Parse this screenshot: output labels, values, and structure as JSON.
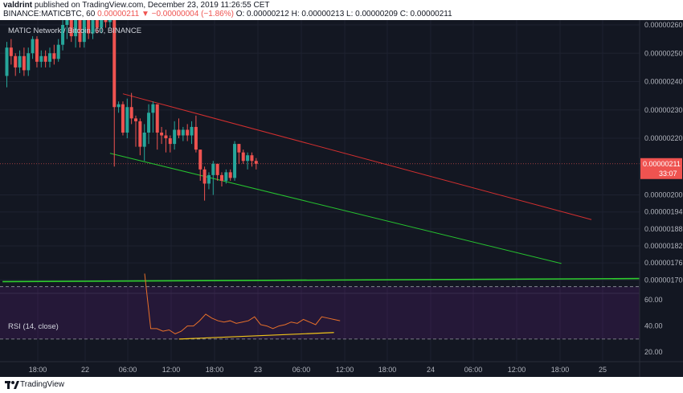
{
  "header": {
    "author": "valdrint",
    "published": "published on TradingView.com, December 23, 2019 11:26:55 CET",
    "symbol_line": "BINANCE:MATICBTC, 60",
    "last": "0.00000211",
    "change": "▼ −0.00000004 (−1.86%)",
    "ohlc": "O: 0.00000212  H: 0.00000213  L: 0.00000209  C: 0.00000211"
  },
  "chart_data": {
    "type": "candlestick",
    "title": "MATIC Network / Bitcoin, 60, BINANCE",
    "price_axis": {
      "ticks": [
        "0.00000260",
        "0.00000250",
        "0.00000240",
        "0.00000230",
        "0.00000220",
        "0.00000200",
        "0.00000194",
        "0.00000188",
        "0.00000182",
        "0.00000176",
        "0.00000170"
      ],
      "last_price_label": "0.00000211",
      "countdown": "33:07"
    },
    "time_axis": {
      "ticks": [
        "18:00",
        "22",
        "06:00",
        "12:00",
        "18:00",
        "23",
        "06:00",
        "12:00",
        "18:00",
        "24",
        "06:00",
        "12:00",
        "18:00",
        "25"
      ]
    },
    "candles": [
      {
        "o": 2.42,
        "c": 2.52,
        "h": 2.54,
        "l": 2.38
      },
      {
        "o": 2.52,
        "c": 2.49,
        "h": 2.55,
        "l": 2.46
      },
      {
        "o": 2.49,
        "c": 2.45,
        "h": 2.5,
        "l": 2.42
      },
      {
        "o": 2.45,
        "c": 2.49,
        "h": 2.51,
        "l": 2.43
      },
      {
        "o": 2.49,
        "c": 2.44,
        "h": 2.52,
        "l": 2.42
      },
      {
        "o": 2.44,
        "c": 2.5,
        "h": 2.52,
        "l": 2.42
      },
      {
        "o": 2.5,
        "c": 2.55,
        "h": 2.56,
        "l": 2.48
      },
      {
        "o": 2.55,
        "c": 2.47,
        "h": 2.56,
        "l": 2.45
      },
      {
        "o": 2.47,
        "c": 2.49,
        "h": 2.51,
        "l": 2.45
      },
      {
        "o": 2.49,
        "c": 2.47,
        "h": 2.51,
        "l": 2.45
      },
      {
        "o": 2.47,
        "c": 2.5,
        "h": 2.52,
        "l": 2.45
      },
      {
        "o": 2.5,
        "c": 2.48,
        "h": 2.53,
        "l": 2.46
      },
      {
        "o": 2.48,
        "c": 2.53,
        "h": 2.55,
        "l": 2.47
      },
      {
        "o": 2.53,
        "c": 2.6,
        "h": 2.62,
        "l": 2.51
      },
      {
        "o": 2.6,
        "c": 2.62,
        "h": 2.63,
        "l": 2.55
      },
      {
        "o": 2.62,
        "c": 2.56,
        "h": 2.63,
        "l": 2.54
      },
      {
        "o": 2.56,
        "c": 2.63,
        "h": 2.64,
        "l": 2.52
      },
      {
        "o": 2.63,
        "c": 2.54,
        "h": 2.64,
        "l": 2.52
      },
      {
        "o": 2.54,
        "c": 2.63,
        "h": 2.64,
        "l": 2.52
      },
      {
        "o": 2.63,
        "c": 2.57,
        "h": 2.64,
        "l": 2.55
      },
      {
        "o": 2.57,
        "c": 2.63,
        "h": 2.64,
        "l": 2.55
      },
      {
        "o": 2.63,
        "c": 2.59,
        "h": 2.64,
        "l": 2.57
      },
      {
        "o": 2.59,
        "c": 2.63,
        "h": 2.64,
        "l": 2.57
      },
      {
        "o": 2.63,
        "c": 2.61,
        "h": 2.64,
        "l": 2.59
      },
      {
        "o": 2.61,
        "c": 2.63,
        "h": 2.64,
        "l": 2.59
      },
      {
        "o": 2.63,
        "c": 2.31,
        "h": 2.64,
        "l": 2.1
      },
      {
        "o": 2.31,
        "c": 2.32,
        "h": 2.33,
        "l": 2.29
      },
      {
        "o": 2.32,
        "c": 2.22,
        "h": 2.33,
        "l": 2.21
      },
      {
        "o": 2.22,
        "c": 2.31,
        "h": 2.34,
        "l": 2.2
      },
      {
        "o": 2.31,
        "c": 2.27,
        "h": 2.36,
        "l": 2.25
      },
      {
        "o": 2.27,
        "c": 2.26,
        "h": 2.28,
        "l": 2.17
      },
      {
        "o": 2.26,
        "c": 2.17,
        "h": 2.27,
        "l": 2.14
      },
      {
        "o": 2.17,
        "c": 2.22,
        "h": 2.25,
        "l": 2.12
      },
      {
        "o": 2.22,
        "c": 2.29,
        "h": 2.32,
        "l": 2.18
      },
      {
        "o": 2.29,
        "c": 2.32,
        "h": 2.33,
        "l": 2.22
      },
      {
        "o": 2.32,
        "c": 2.22,
        "h": 2.32,
        "l": 2.16
      },
      {
        "o": 2.22,
        "c": 2.21,
        "h": 2.24,
        "l": 2.18
      },
      {
        "o": 2.21,
        "c": 2.2,
        "h": 2.23,
        "l": 2.15
      },
      {
        "o": 2.2,
        "c": 2.18,
        "h": 2.21,
        "l": 2.15
      },
      {
        "o": 2.18,
        "c": 2.23,
        "h": 2.26,
        "l": 2.16
      },
      {
        "o": 2.23,
        "c": 2.21,
        "h": 2.27,
        "l": 2.2
      },
      {
        "o": 2.21,
        "c": 2.23,
        "h": 2.24,
        "l": 2.19
      },
      {
        "o": 2.23,
        "c": 2.21,
        "h": 2.25,
        "l": 2.19
      },
      {
        "o": 2.21,
        "c": 2.24,
        "h": 2.26,
        "l": 2.18
      },
      {
        "o": 2.24,
        "c": 2.16,
        "h": 2.28,
        "l": 2.15
      },
      {
        "o": 2.16,
        "c": 2.09,
        "h": 2.16,
        "l": 2.05
      },
      {
        "o": 2.09,
        "c": 2.04,
        "h": 2.1,
        "l": 1.98
      },
      {
        "o": 2.04,
        "c": 2.07,
        "h": 2.08,
        "l": 2.02
      },
      {
        "o": 2.07,
        "c": 2.11,
        "h": 2.12,
        "l": 2.0
      },
      {
        "o": 2.11,
        "c": 2.07,
        "h": 2.11,
        "l": 2.05
      },
      {
        "o": 2.07,
        "c": 2.05,
        "h": 2.08,
        "l": 2.03
      },
      {
        "o": 2.05,
        "c": 2.08,
        "h": 2.09,
        "l": 2.04
      },
      {
        "o": 2.08,
        "c": 2.06,
        "h": 2.09,
        "l": 2.05
      },
      {
        "o": 2.06,
        "c": 2.18,
        "h": 2.19,
        "l": 2.05
      },
      {
        "o": 2.18,
        "c": 2.15,
        "h": 2.18,
        "l": 2.11
      },
      {
        "o": 2.15,
        "c": 2.12,
        "h": 2.16,
        "l": 2.11
      },
      {
        "o": 2.12,
        "c": 2.14,
        "h": 2.15,
        "l": 2.09
      },
      {
        "o": 2.14,
        "c": 2.12,
        "h": 2.15,
        "l": 2.1
      },
      {
        "o": 2.12,
        "c": 2.11,
        "h": 2.13,
        "l": 2.09
      }
    ],
    "trendlines": [
      {
        "name": "descending resistance",
        "color": "#d32f2f",
        "from": {
          "bar": 27,
          "price": 2.357
        },
        "to": {
          "bar": 136,
          "price": 1.913
        }
      },
      {
        "name": "descending support",
        "color": "#26c22f",
        "from": {
          "bar": 24,
          "price": 2.147
        },
        "to": {
          "bar": 129,
          "price": 1.758
        }
      },
      {
        "name": "horizontal support",
        "color": "#2ecc2e",
        "from": {
          "bar": -1,
          "price": 1.694
        },
        "to": {
          "bar": 148,
          "price": 1.705
        }
      }
    ],
    "rsi": {
      "label": "RSI (14, close)",
      "ticks": [
        "60.00",
        "40.00",
        "20.00"
      ],
      "band": [
        30,
        70
      ],
      "values": [
        80,
        38,
        38,
        36,
        37,
        34,
        36,
        40,
        40,
        44,
        49,
        46,
        44,
        43,
        44,
        42,
        43,
        44,
        47,
        41,
        40,
        38,
        40,
        41,
        43,
        42,
        45,
        43,
        41,
        47,
        46,
        45,
        44
      ],
      "divergence_line": {
        "color": "#f0c419",
        "from": {
          "index": 3,
          "value": 30
        },
        "to": {
          "index": 31,
          "value": 35
        }
      }
    }
  },
  "footer": {
    "brand": "TradingView"
  }
}
